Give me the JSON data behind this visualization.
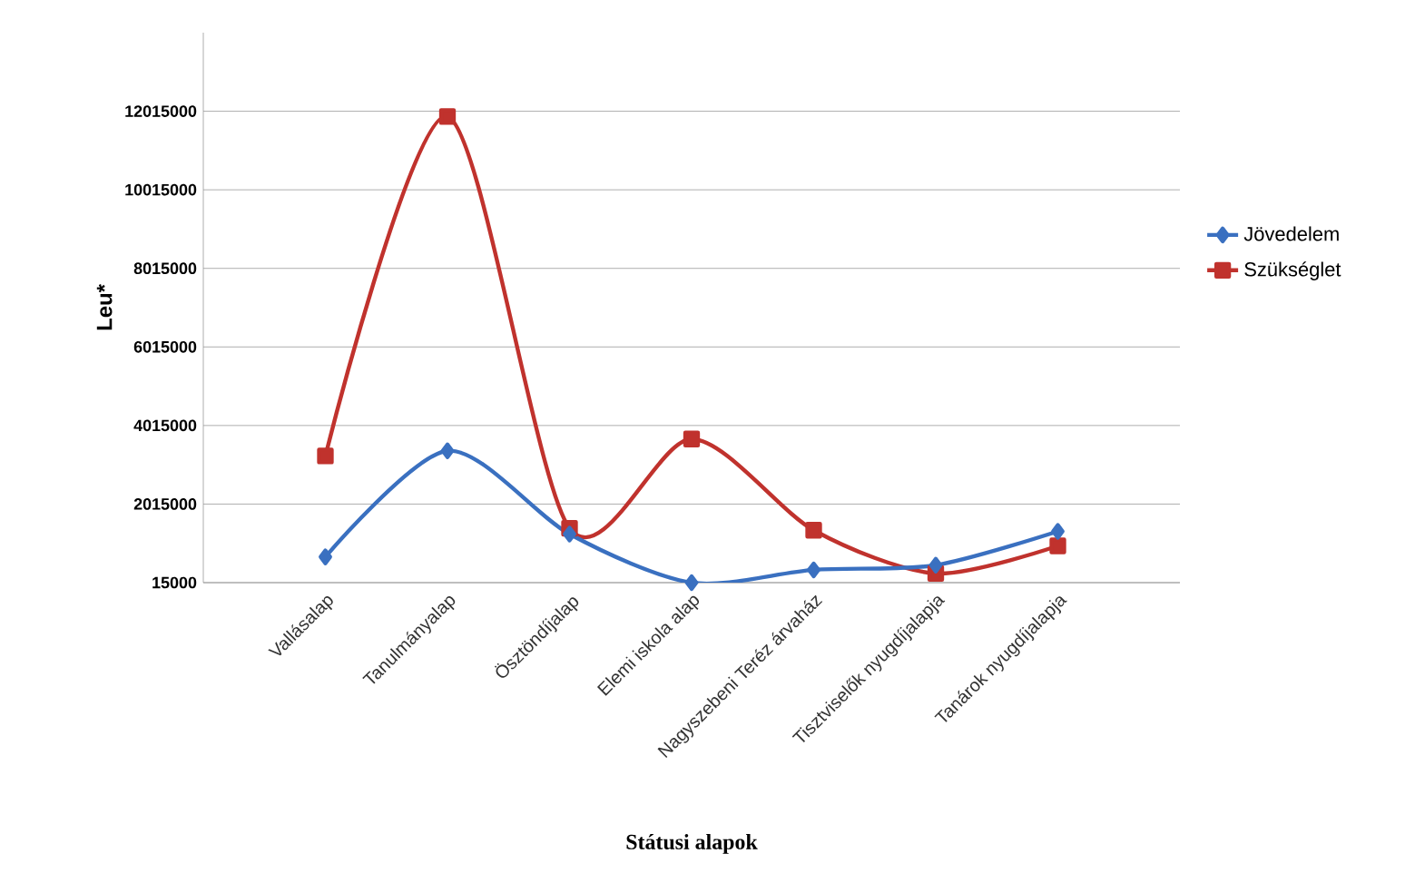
{
  "chart_data": {
    "type": "line",
    "xlabel": "Státusi alapok",
    "ylabel": "Leu*",
    "categories": [
      "Vallásalap",
      "Tanulmányalap",
      "Ösztöndíjalap",
      "Elemi iskola alap",
      "Nagyszebeni Teréz árvaház",
      "Tisztviselők nyugdíjalapja",
      "Tanárok nyugdíjalapja"
    ],
    "series": [
      {
        "name": "Jövedelem",
        "color": "#3a70c0",
        "marker": "diamond",
        "values": [
          670000,
          3370000,
          1250000,
          15000,
          340000,
          460000,
          1320000
        ]
      },
      {
        "name": "Szükséglet",
        "color": "#c0322d",
        "marker": "square",
        "values": [
          3240000,
          11880000,
          1400000,
          3670000,
          1350000,
          250000,
          950000
        ]
      }
    ],
    "ylim": [
      15000,
      14015000
    ],
    "yticks": [
      15000,
      2015000,
      4015000,
      6015000,
      8015000,
      10015000,
      12015000
    ],
    "grid": "y",
    "legend": "right"
  }
}
